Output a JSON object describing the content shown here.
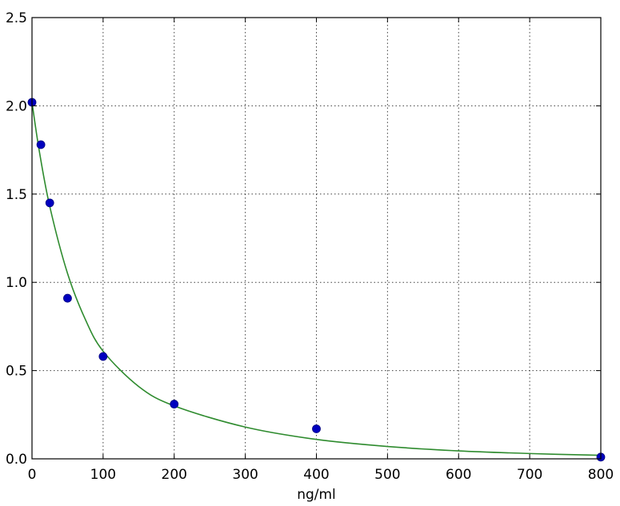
{
  "chart_data": {
    "type": "scatter",
    "xlabel": "ng/ml",
    "ylabel": "",
    "xlim": [
      0,
      800
    ],
    "ylim": [
      0,
      2.5
    ],
    "x_ticks": [
      0,
      100,
      200,
      300,
      400,
      500,
      600,
      700,
      800
    ],
    "y_ticks": [
      "0.0",
      "0.5",
      "1.0",
      "1.5",
      "2.0",
      "2.5"
    ],
    "grid": true,
    "series": [
      {
        "kind": "points",
        "color": "#0000bf",
        "x": [
          0,
          12.5,
          25,
          50,
          100,
          200,
          400,
          800
        ],
        "y": [
          2.02,
          1.78,
          1.45,
          0.91,
          0.58,
          0.31,
          0.17,
          0.01
        ]
      },
      {
        "kind": "fit-curve",
        "color": "#2e8b2e",
        "x": [
          0,
          10,
          25,
          50,
          75,
          100,
          150,
          200,
          300,
          400,
          500,
          600,
          700,
          800
        ],
        "y": [
          2.02,
          1.75,
          1.43,
          1.05,
          0.79,
          0.61,
          0.41,
          0.3,
          0.18,
          0.11,
          0.07,
          0.045,
          0.03,
          0.02
        ]
      }
    ]
  }
}
